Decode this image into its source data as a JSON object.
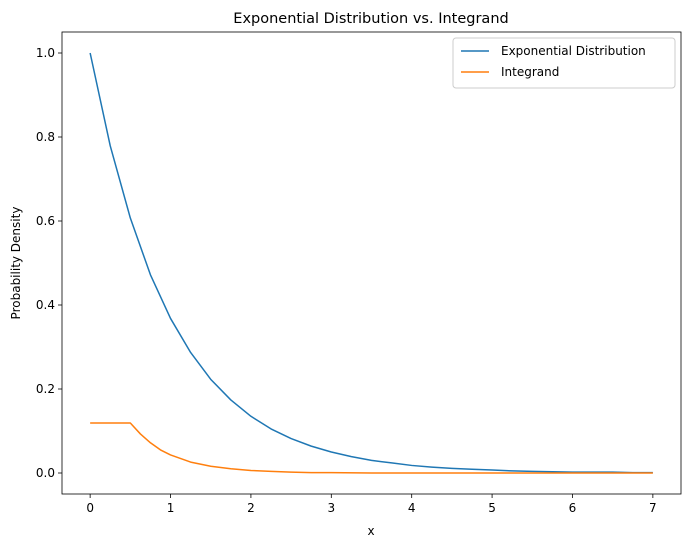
{
  "chart_data": {
    "type": "line",
    "title": "Exponential Distribution vs. Integrand",
    "xlabel": "x",
    "ylabel": "Probability Density",
    "xlim": [
      -0.35,
      7.35
    ],
    "ylim": [
      -0.05,
      1.05
    ],
    "xticks": [
      0,
      1,
      2,
      3,
      4,
      5,
      6,
      7
    ],
    "xtick_labels": [
      "0",
      "1",
      "2",
      "3",
      "4",
      "5",
      "6",
      "7"
    ],
    "yticks": [
      0.0,
      0.2,
      0.4,
      0.6,
      0.8,
      1.0
    ],
    "ytick_labels": [
      "0.0",
      "0.2",
      "0.4",
      "0.6",
      "0.8",
      "1.0"
    ],
    "grid": false,
    "legend_position": "upper right",
    "series": [
      {
        "name": "Exponential Distribution",
        "color": "#1f77b4",
        "x": [
          0,
          0.25,
          0.5,
          0.75,
          1,
          1.25,
          1.5,
          1.75,
          2,
          2.25,
          2.5,
          2.75,
          3,
          3.25,
          3.5,
          3.75,
          4,
          4.25,
          4.5,
          4.75,
          5,
          5.25,
          5.5,
          5.75,
          6,
          6.25,
          6.5,
          6.75,
          7
        ],
        "y": [
          1.0,
          0.779,
          0.607,
          0.472,
          0.368,
          0.287,
          0.223,
          0.174,
          0.135,
          0.105,
          0.082,
          0.064,
          0.05,
          0.039,
          0.03,
          0.024,
          0.018,
          0.014,
          0.011,
          0.009,
          0.007,
          0.005,
          0.004,
          0.003,
          0.002,
          0.002,
          0.002,
          0.001,
          0.001
        ]
      },
      {
        "name": "Integrand",
        "color": "#ff7f0e",
        "x": [
          0,
          0.1,
          0.2,
          0.3,
          0.4,
          0.5,
          0.625,
          0.75,
          0.875,
          1,
          1.25,
          1.5,
          1.75,
          2,
          2.25,
          2.5,
          2.75,
          3,
          3.5,
          4,
          4.5,
          5,
          5.5,
          6,
          6.5,
          7
        ],
        "y": [
          0.119,
          0.119,
          0.119,
          0.119,
          0.119,
          0.119,
          0.093,
          0.072,
          0.055,
          0.043,
          0.026,
          0.016,
          0.01,
          0.006,
          0.004,
          0.002,
          0.001,
          0.001,
          0.0,
          0.0,
          0.0,
          0.0,
          0.0,
          0.0,
          0.0,
          0.0
        ]
      }
    ]
  }
}
